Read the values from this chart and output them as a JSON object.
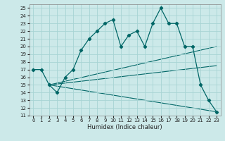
{
  "xlabel": "Humidex (Indice chaleur)",
  "xlim": [
    -0.5,
    23.5
  ],
  "ylim": [
    11,
    25.5
  ],
  "yticks": [
    11,
    12,
    13,
    14,
    15,
    16,
    17,
    18,
    19,
    20,
    21,
    22,
    23,
    24,
    25
  ],
  "xticks": [
    0,
    1,
    2,
    3,
    4,
    5,
    6,
    7,
    8,
    9,
    10,
    11,
    12,
    13,
    14,
    15,
    16,
    17,
    18,
    19,
    20,
    21,
    22,
    23
  ],
  "bg_color": "#cce9e9",
  "grid_color": "#a8d4d4",
  "line_color": "#006666",
  "main_x": [
    0,
    1,
    2,
    3,
    4,
    5,
    6,
    7,
    8,
    9,
    10,
    11,
    12,
    13,
    14,
    15,
    16,
    17,
    18,
    19,
    20,
    21,
    22,
    23
  ],
  "main_y": [
    17,
    17,
    15,
    14,
    16,
    17,
    19.5,
    21,
    22,
    23,
    23.5,
    20,
    21.5,
    22,
    20,
    23,
    25,
    23,
    23,
    20,
    20,
    15,
    13,
    11.5
  ],
  "straight_lines": [
    {
      "x": [
        2,
        23
      ],
      "y": [
        15,
        11.5
      ]
    },
    {
      "x": [
        2,
        23
      ],
      "y": [
        15,
        17.5
      ]
    },
    {
      "x": [
        2,
        23
      ],
      "y": [
        15,
        20
      ]
    }
  ]
}
